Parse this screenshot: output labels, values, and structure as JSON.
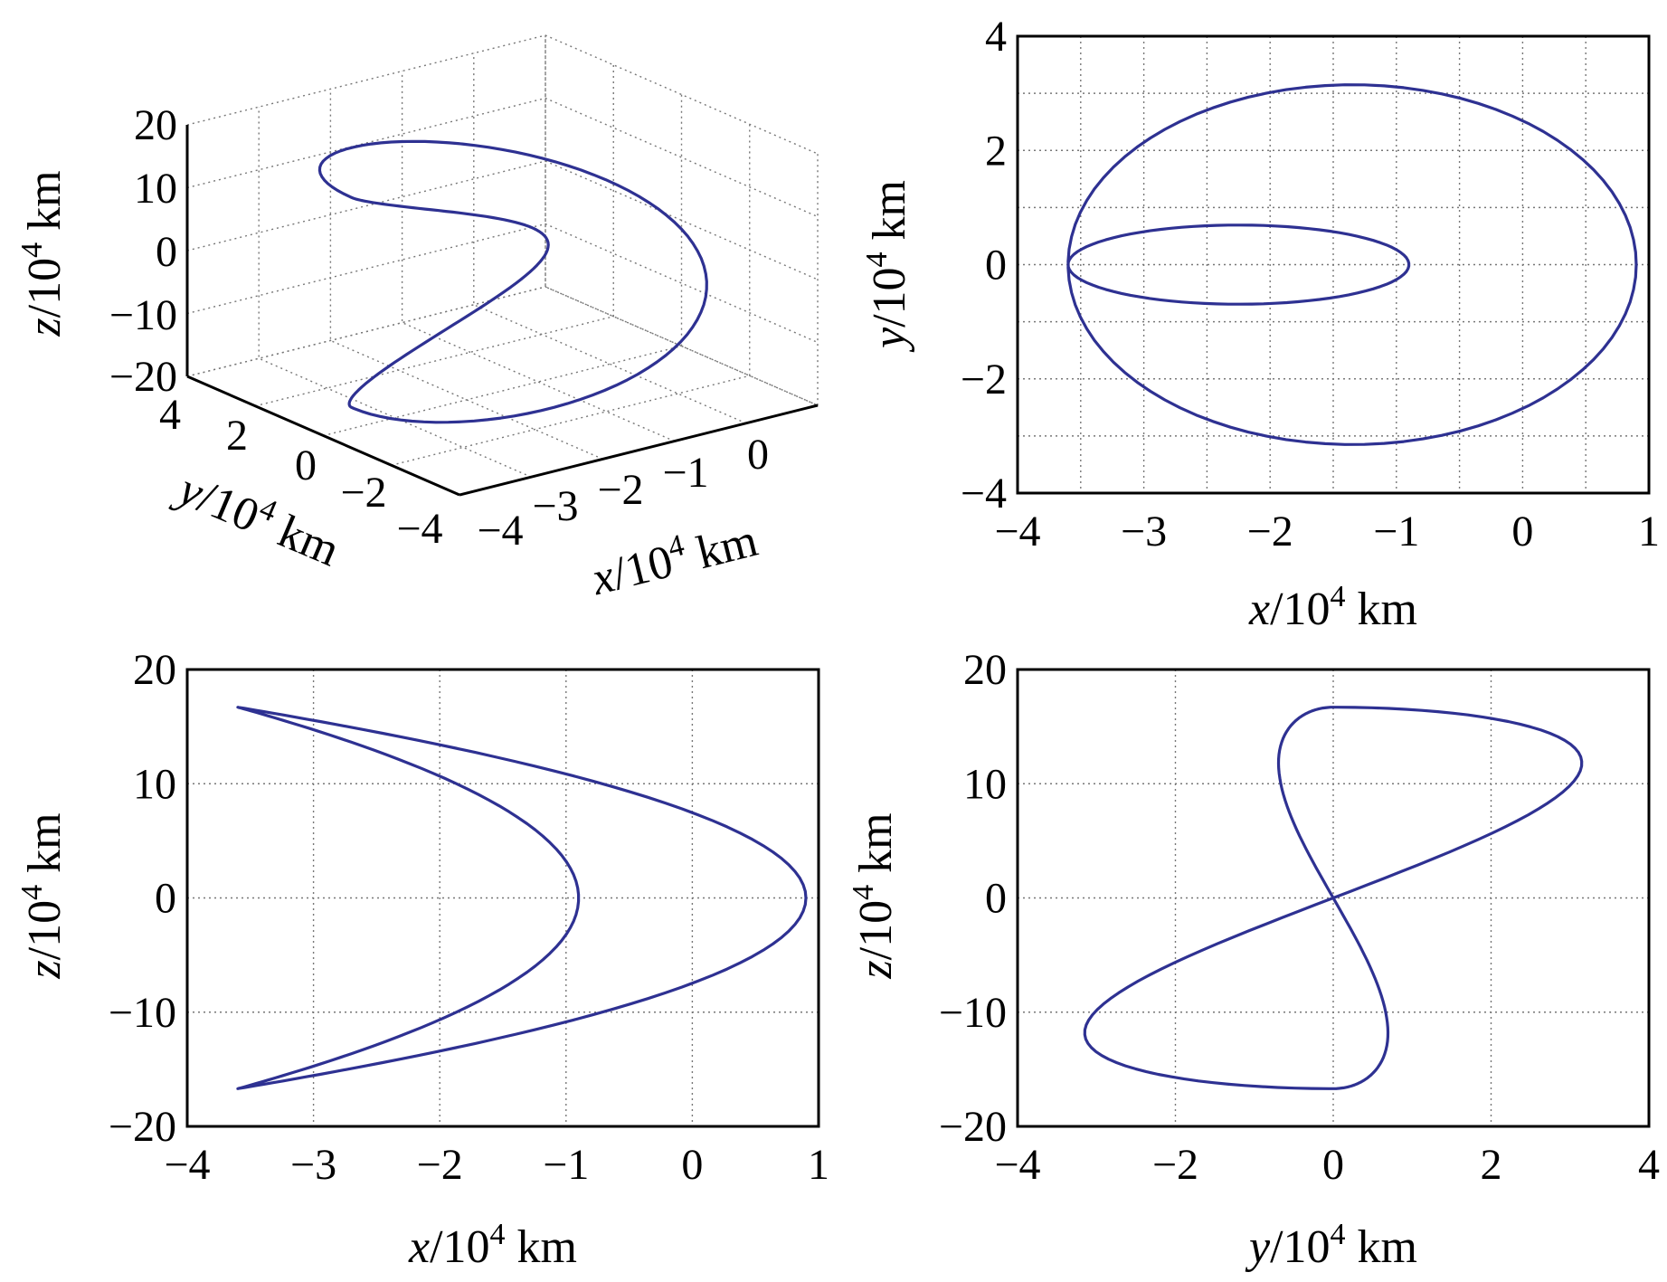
{
  "figure": {
    "curve_color": "#2e3192",
    "note": ""
  },
  "chart_data": [
    {
      "id": "panel-3d",
      "type": "line",
      "view": "3d",
      "title": "",
      "xlabel": {
        "var": "x",
        "unit": "/10",
        "exp": "4",
        "suffix": " km"
      },
      "ylabel": {
        "var": "y",
        "unit": "/10",
        "exp": "4",
        "suffix": " km"
      },
      "zlabel": {
        "var": "z",
        "unit": "/10",
        "exp": "4",
        "suffix": " km"
      },
      "xlim": [
        -4,
        1
      ],
      "ylim": [
        -4,
        4
      ],
      "zlim": [
        -20,
        20
      ],
      "xticks": [
        "−4",
        "−3",
        "−2",
        "−1",
        "0"
      ],
      "yticks": [
        "4",
        "2",
        "0",
        "−2",
        "−4"
      ],
      "zticks": [
        "20",
        "10",
        "0",
        "−10",
        "−20"
      ],
      "grid": true
    },
    {
      "id": "panel-xy",
      "type": "line",
      "title": "",
      "xlabel": {
        "var": "x",
        "unit": "/10",
        "exp": "4",
        "suffix": " km"
      },
      "ylabel": {
        "var": "y",
        "unit": "/10",
        "exp": "4",
        "suffix": " km"
      },
      "xlim": [
        -4,
        1
      ],
      "ylim": [
        -4,
        4
      ],
      "xticks": [
        {
          "v": -4,
          "t": "−4"
        },
        {
          "v": -3,
          "t": "−3"
        },
        {
          "v": -2,
          "t": "−2"
        },
        {
          "v": -1,
          "t": "−1"
        },
        {
          "v": 0,
          "t": "0"
        },
        {
          "v": 1,
          "t": "1"
        }
      ],
      "yticks": [
        {
          "v": -4,
          "t": "−4"
        },
        {
          "v": -2,
          "t": "−2"
        },
        {
          "v": 0,
          "t": "0"
        },
        {
          "v": 2,
          "t": "2"
        },
        {
          "v": 4,
          "t": "4"
        }
      ],
      "xgrid": [
        -3.5,
        -3,
        -2.5,
        -2,
        -1.5,
        -1,
        -0.5,
        0,
        0.5
      ],
      "ygrid": [
        -3,
        -2,
        -1,
        0,
        1,
        2,
        3
      ],
      "grid": true
    },
    {
      "id": "panel-xz",
      "type": "line",
      "title": "",
      "xlabel": {
        "var": "x",
        "unit": "/10",
        "exp": "4",
        "suffix": " km"
      },
      "ylabel": {
        "var": "z",
        "unit": "/10",
        "exp": "4",
        "suffix": " km"
      },
      "xlim": [
        -4,
        1
      ],
      "ylim": [
        -20,
        20
      ],
      "xticks": [
        {
          "v": -4,
          "t": "−4"
        },
        {
          "v": -3,
          "t": "−3"
        },
        {
          "v": -2,
          "t": "−2"
        },
        {
          "v": -1,
          "t": "−1"
        },
        {
          "v": 0,
          "t": "0"
        },
        {
          "v": 1,
          "t": "1"
        }
      ],
      "yticks": [
        {
          "v": -20,
          "t": "−20"
        },
        {
          "v": -10,
          "t": "−10"
        },
        {
          "v": 0,
          "t": "0"
        },
        {
          "v": 10,
          "t": "10"
        },
        {
          "v": 20,
          "t": "20"
        }
      ],
      "xgrid": [
        -3,
        -2,
        -1,
        0
      ],
      "ygrid": [
        -10,
        0,
        10
      ],
      "grid": true
    },
    {
      "id": "panel-yz",
      "type": "line",
      "title": "",
      "xlabel": {
        "var": "y",
        "unit": "/10",
        "exp": "4",
        "suffix": " km"
      },
      "ylabel": {
        "var": "z",
        "unit": "/10",
        "exp": "4",
        "suffix": " km"
      },
      "xlim": [
        -4,
        4
      ],
      "ylim": [
        -20,
        20
      ],
      "xticks": [
        {
          "v": -4,
          "t": "−4"
        },
        {
          "v": -2,
          "t": "−2"
        },
        {
          "v": 0,
          "t": "0"
        },
        {
          "v": 2,
          "t": "2"
        },
        {
          "v": 4,
          "t": "4"
        }
      ],
      "yticks": [
        {
          "v": -20,
          "t": "−20"
        },
        {
          "v": -10,
          "t": "−10"
        },
        {
          "v": 0,
          "t": "0"
        },
        {
          "v": 10,
          "t": "10"
        },
        {
          "v": 20,
          "t": "20"
        }
      ],
      "xgrid": [
        -2,
        0,
        2
      ],
      "ygrid": [
        -10,
        0,
        10
      ],
      "grid": true
    }
  ],
  "trajectory": {
    "description": "",
    "samples": 181,
    "x_center": -1.35,
    "x_amp_cos_t": 2.25,
    "x_amp_cos_2t": 0.0,
    "y_amp_sin_t": 3.15,
    "y_shift_dep": 0.0,
    "z_amp": 16.7
  }
}
